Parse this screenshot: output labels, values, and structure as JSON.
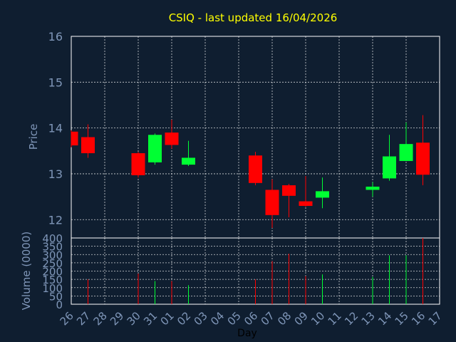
{
  "chart_data": {
    "type": "candlestick",
    "title": "CSIQ - last updated 16/04/2026",
    "price_axis": {
      "label": "Price",
      "range": [
        11.6,
        16
      ],
      "ticks": [
        "12",
        "13",
        "14",
        "15",
        "16"
      ],
      "tick_values": [
        12,
        13,
        14,
        15,
        16
      ],
      "grid": true
    },
    "volume_axis": {
      "label": "Volume (0000)",
      "range": [
        0,
        400
      ],
      "ticks": [
        "0",
        "50",
        "100",
        "150",
        "200",
        "250",
        "300",
        "350",
        "400"
      ],
      "tick_values": [
        0,
        50,
        100,
        150,
        200,
        250,
        300,
        350,
        400
      ],
      "grid": true
    },
    "x_axis": {
      "label": "Day",
      "ticks": [
        "26",
        "27",
        "28",
        "29",
        "30",
        "31",
        "01",
        "02",
        "03",
        "04",
        "05",
        "06",
        "07",
        "08",
        "09",
        "10",
        "11",
        "12",
        "13",
        "14",
        "15",
        "16",
        "17"
      ]
    },
    "colors": {
      "background": "#0f1e30",
      "up": "#00ff33",
      "down": "#ff0000",
      "title": "#ffff00",
      "axis_text": "#7f96b8",
      "xlabel": "#000000",
      "grid": "#ffffff"
    },
    "candles": [
      {
        "day": "26",
        "open": 13.92,
        "high": 13.95,
        "low": 13.58,
        "close": 13.62,
        "volume": 0
      },
      {
        "day": "27",
        "open": 13.8,
        "high": 14.08,
        "low": 13.35,
        "close": 13.45,
        "volume": 150
      },
      {
        "day": "30",
        "open": 13.45,
        "high": 13.48,
        "low": 12.92,
        "close": 12.97,
        "volume": 185
      },
      {
        "day": "31",
        "open": 13.25,
        "high": 13.88,
        "low": 13.2,
        "close": 13.85,
        "volume": 140
      },
      {
        "day": "01",
        "open": 13.9,
        "high": 14.18,
        "low": 13.55,
        "close": 13.63,
        "volume": 140
      },
      {
        "day": "02",
        "open": 13.2,
        "high": 13.72,
        "low": 13.17,
        "close": 13.35,
        "volume": 115
      },
      {
        "day": "06",
        "open": 13.4,
        "high": 13.48,
        "low": 12.75,
        "close": 12.8,
        "volume": 150
      },
      {
        "day": "07",
        "open": 12.65,
        "high": 12.88,
        "low": 11.82,
        "close": 12.1,
        "volume": 260
      },
      {
        "day": "08",
        "open": 12.75,
        "high": 12.78,
        "low": 12.05,
        "close": 12.52,
        "volume": 305
      },
      {
        "day": "09",
        "open": 12.4,
        "high": 12.95,
        "low": 12.28,
        "close": 12.3,
        "volume": 170
      },
      {
        "day": "10",
        "open": 12.48,
        "high": 12.92,
        "low": 12.25,
        "close": 12.62,
        "volume": 180
      },
      {
        "day": "13",
        "open": 12.65,
        "high": 12.82,
        "low": 12.5,
        "close": 12.72,
        "volume": 165
      },
      {
        "day": "14",
        "open": 12.9,
        "high": 13.85,
        "low": 12.85,
        "close": 13.38,
        "volume": 295
      },
      {
        "day": "15",
        "open": 13.28,
        "high": 14.12,
        "low": 13.28,
        "close": 13.65,
        "volume": 295
      },
      {
        "day": "16",
        "open": 13.68,
        "high": 14.28,
        "low": 12.75,
        "close": 12.98,
        "volume": 400
      }
    ]
  }
}
